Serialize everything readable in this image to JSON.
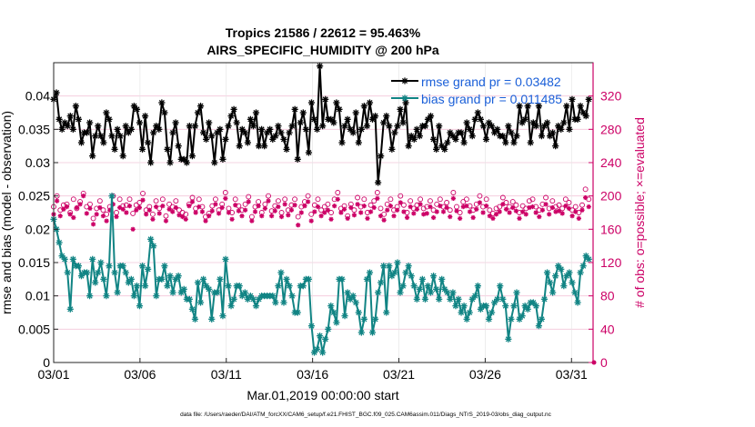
{
  "chart_data": {
    "type": "line",
    "title_line1": "Tropics 21586 / 22612 = 95.463%",
    "title_line2": "AIRS_SPECIFIC_HUMIDITY @ 200 hPa",
    "xlabel": "Mar.01,2019 00:00:00 start",
    "ylabel_left": "rmse and bias (model - observation)",
    "ylabel_right": "# of obs: o=possible; ×=evaluated",
    "footer": "data file: /Users/raeder/DAI/ATM_forcXX/CAM6_setup/f.e21.FHIST_BGC.f09_025.CAM6assim.011/Diags_NTrS_2019-03/obs_diag_output.nc",
    "x_ticks": [
      "03/01",
      "03/06",
      "03/11",
      "03/16",
      "03/21",
      "03/26",
      "03/31"
    ],
    "x_tick_days": [
      0,
      5,
      10,
      15,
      20,
      25,
      30
    ],
    "xlim": [
      0,
      31.25
    ],
    "ylim_left": [
      0,
      0.045
    ],
    "left_ticks": [
      "0",
      "0.005",
      "0.01",
      "0.015",
      "0.02",
      "0.025",
      "0.03",
      "0.035",
      "0.04"
    ],
    "ylim_right": [
      0,
      360
    ],
    "right_ticks": [
      "0",
      "40",
      "80",
      "120",
      "160",
      "200",
      "240",
      "280",
      "320"
    ],
    "grid": true,
    "legend_position": "top-right",
    "series": [
      {
        "name": "rmse grand pr = 0.03482",
        "color": "#000000",
        "marker": "asterisk",
        "values": [
          0.0395,
          0.0405,
          0.0365,
          0.035,
          0.036,
          0.0355,
          0.037,
          0.035,
          0.0385,
          0.0365,
          0.033,
          0.0345,
          0.0345,
          0.036,
          0.031,
          0.034,
          0.0355,
          0.034,
          0.033,
          0.0375,
          0.0365,
          0.034,
          0.032,
          0.035,
          0.034,
          0.031,
          0.0355,
          0.0345,
          0.035,
          0.0385,
          0.038,
          0.036,
          0.032,
          0.037,
          0.033,
          0.03,
          0.0345,
          0.0355,
          0.035,
          0.039,
          0.0375,
          0.032,
          0.03,
          0.0345,
          0.036,
          0.0325,
          0.0305,
          0.0305,
          0.03,
          0.0355,
          0.031,
          0.0355,
          0.0375,
          0.0385,
          0.0345,
          0.0335,
          0.036,
          0.034,
          0.03,
          0.0345,
          0.035,
          0.0305,
          0.0335,
          0.0355,
          0.037,
          0.038,
          0.036,
          0.0325,
          0.035,
          0.0345,
          0.033,
          0.0365,
          0.0355,
          0.0375,
          0.0325,
          0.035,
          0.0325,
          0.0345,
          0.035,
          0.0335,
          0.034,
          0.0355,
          0.0345,
          0.0335,
          0.032,
          0.0345,
          0.0355,
          0.038,
          0.0305,
          0.036,
          0.0375,
          0.035,
          0.0315,
          0.039,
          0.0365,
          0.035,
          0.0445,
          0.0355,
          0.0395,
          0.0365,
          0.0365,
          0.036,
          0.039,
          0.038,
          0.033,
          0.0355,
          0.0365,
          0.035,
          0.0345,
          0.0375,
          0.033,
          0.035,
          0.0385,
          0.0355,
          0.039,
          0.0365,
          0.037,
          0.027,
          0.031,
          0.036,
          0.037,
          0.0355,
          0.032,
          0.0345,
          0.0355,
          0.038,
          0.036,
          0.039,
          0.0325,
          0.034,
          0.0335,
          0.035,
          0.034,
          0.0355,
          0.0355,
          0.0365,
          0.037,
          0.0335,
          0.032,
          0.0355,
          0.0325,
          0.032,
          0.033,
          0.0345,
          0.034,
          0.0335,
          0.0345,
          0.0345,
          0.033,
          0.036,
          0.035,
          0.034,
          0.0365,
          0.0375,
          0.0365,
          0.0355,
          0.0335,
          0.036,
          0.0355,
          0.0345,
          0.035,
          0.034,
          0.034,
          0.033,
          0.0355,
          0.0345,
          0.033,
          0.034,
          0.0385,
          0.036,
          0.0365,
          0.0385,
          0.033,
          0.036,
          0.0355,
          0.0385,
          0.034,
          0.0355,
          0.036,
          0.034,
          0.0345,
          0.0325,
          0.0355,
          0.035,
          0.036,
          0.0385,
          0.035,
          0.0395,
          0.0365,
          0.0365,
          0.0385,
          0.0375,
          0.037,
          0.0395
        ]
      },
      {
        "name": "bias grand pr = 0.011485",
        "color": "#118484",
        "marker": "asterisk",
        "values": [
          0.0215,
          0.02,
          0.018,
          0.016,
          0.0155,
          0.0135,
          0.008,
          0.0155,
          0.0145,
          0.0145,
          0.013,
          0.0135,
          0.0135,
          0.01,
          0.0155,
          0.012,
          0.0135,
          0.015,
          0.0125,
          0.01,
          0.0145,
          0.025,
          0.0135,
          0.0105,
          0.0145,
          0.0145,
          0.0135,
          0.012,
          0.0125,
          0.01,
          0.0115,
          0.0085,
          0.0145,
          0.0115,
          0.014,
          0.0185,
          0.0175,
          0.01,
          0.0125,
          0.0125,
          0.0145,
          0.0115,
          0.013,
          0.0105,
          0.0125,
          0.013,
          0.0105,
          0.011,
          0.0095,
          0.0095,
          0.008,
          0.0065,
          0.012,
          0.009,
          0.0125,
          0.0115,
          0.011,
          0.0065,
          0.0105,
          0.0105,
          0.0125,
          0.007,
          0.0155,
          0.0115,
          0.0085,
          0.0095,
          0.0115,
          0.0115,
          0.01,
          0.0105,
          0.0095,
          0.01,
          0.0095,
          0.0085,
          0.0095,
          0.01,
          0.01,
          0.01,
          0.01,
          0.01,
          0.009,
          0.0115,
          0.0135,
          0.009,
          0.0125,
          0.0115,
          0.01,
          0.0075,
          0.0075,
          0.0115,
          0.0115,
          0.0125,
          0.0125,
          0.0055,
          0.0015,
          0.002,
          0.004,
          0.0015,
          0.0035,
          0.005,
          0.0085,
          0.0075,
          0.006,
          0.0125,
          0.0125,
          0.007,
          0.0105,
          0.0095,
          0.01,
          0.009,
          0.0075,
          0.0045,
          0.0065,
          0.0125,
          0.0135,
          0.0045,
          0.0065,
          0.0105,
          0.012,
          0.0145,
          0.0075,
          0.0145,
          0.013,
          0.0135,
          0.015,
          0.0105,
          0.0115,
          0.0135,
          0.0145,
          0.013,
          0.0115,
          0.0095,
          0.011,
          0.0125,
          0.0095,
          0.0115,
          0.0105,
          0.013,
          0.011,
          0.0095,
          0.0125,
          0.011,
          0.0105,
          0.0095,
          0.0105,
          0.0085,
          0.0095,
          0.0075,
          0.0085,
          0.0065,
          0.0075,
          0.0095,
          0.01,
          0.0115,
          0.008,
          0.0085,
          0.0085,
          0.0065,
          0.0075,
          0.009,
          0.0095,
          0.0115,
          0.0095,
          0.0085,
          0.0035,
          0.0065,
          0.0085,
          0.0105,
          0.0065,
          0.007,
          0.0085,
          0.008,
          0.009,
          0.009,
          0.0085,
          0.0055,
          0.0065,
          0.0095,
          0.0135,
          0.012,
          0.0105,
          0.013,
          0.0145,
          0.014,
          0.0115,
          0.013,
          0.0135,
          0.012,
          0.0105,
          0.009,
          0.0135,
          0.0145,
          0.016,
          0.0155
        ]
      }
    ],
    "obs_possible": {
      "name": "o=possible",
      "color": "#cc0066",
      "values": [
        187,
        200,
        183,
        189,
        190,
        180,
        196,
        185,
        193,
        203,
        187,
        190,
        173,
        185,
        194,
        183,
        178,
        187,
        200,
        180,
        196,
        188,
        189,
        196,
        179,
        189,
        192,
        203,
        183,
        187,
        178,
        194,
        185,
        196,
        176,
        190,
        187,
        194,
        183,
        180,
        178,
        190,
        198,
        185,
        196,
        187,
        175,
        179,
        188,
        196,
        183,
        190,
        204,
        185,
        180,
        196,
        188,
        183,
        190,
        199,
        175,
        187,
        193,
        180,
        190,
        200,
        182,
        188,
        194,
        180,
        196,
        183,
        189,
        196,
        175,
        187,
        193,
        200,
        178,
        189,
        196,
        183,
        187,
        190,
        180,
        196,
        204,
        185,
        188,
        176,
        190,
        183,
        198,
        187,
        196,
        180,
        189,
        194,
        204,
        185,
        178,
        190,
        196,
        183,
        187,
        200,
        189,
        180,
        194,
        185,
        189,
        196,
        185,
        187,
        194,
        183,
        190,
        196,
        187,
        192,
        183,
        204,
        187,
        180,
        193,
        196,
        188,
        183,
        190,
        200,
        187,
        196,
        183,
        179,
        185,
        187,
        198,
        192,
        187,
        193,
        189,
        180,
        188,
        185,
        194,
        196,
        187,
        183,
        190,
        198,
        185,
        194,
        187,
        189,
        185,
        196,
        192,
        183,
        187,
        180,
        189,
        208,
        196
      ]
    },
    "obs_evaluated": {
      "name": "×=evaluated",
      "color": "#cc0066",
      "values": [
        178,
        194,
        176,
        184,
        187,
        178,
        174,
        186,
        190,
        200,
        179,
        185,
        166,
        178,
        186,
        176,
        170,
        183,
        190,
        175,
        186,
        184,
        180,
        188,
        160,
        183,
        186,
        195,
        178,
        183,
        172,
        187,
        179,
        188,
        170,
        184,
        181,
        186,
        177,
        175,
        172,
        188,
        193,
        180,
        187,
        181,
        170,
        176,
        182,
        190,
        179,
        186,
        197,
        180,
        172,
        189,
        182,
        176,
        183,
        193,
        170,
        181,
        188,
        176,
        185,
        194,
        176,
        182,
        187,
        175,
        190,
        177,
        183,
        189,
        165,
        180,
        188,
        193,
        170,
        181,
        187,
        176,
        180,
        183,
        172,
        188,
        196,
        180,
        184,
        173,
        186,
        177,
        190,
        180,
        188,
        173,
        181,
        186,
        197,
        176,
        171,
        183,
        188,
        176,
        183,
        192,
        181,
        174,
        187,
        179,
        184,
        190,
        178,
        179,
        187,
        174,
        181,
        188,
        181,
        186,
        175,
        197,
        182,
        173,
        187,
        188,
        181,
        174,
        184,
        192,
        180,
        188,
        176,
        173,
        178,
        181,
        190,
        184,
        180,
        186,
        182,
        173,
        181,
        178,
        186,
        187,
        180,
        175,
        183,
        190,
        178,
        186,
        181,
        182,
        179,
        188,
        185,
        176,
        181,
        173,
        183,
        198,
        187
      ]
    }
  }
}
